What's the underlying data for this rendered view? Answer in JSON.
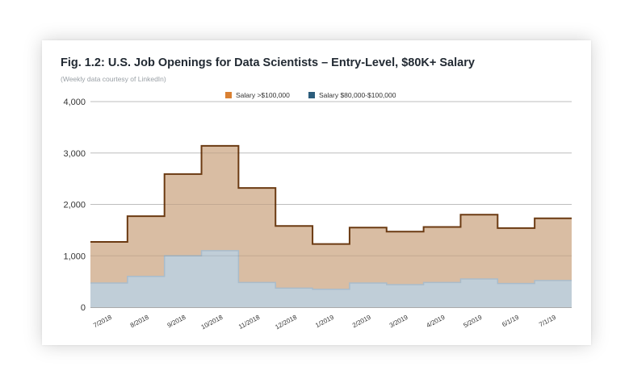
{
  "chart_data": {
    "type": "area",
    "title": "Fig. 1.2: U.S. Job Openings for Data Scientists – Entry-Level, $80K+ Salary",
    "subtitle": "(Weekly data courtesy of LinkedIn)",
    "step": true,
    "stacked": true,
    "categories": [
      "7/2018",
      "8/2018",
      "9/2018",
      "10/2018",
      "11/2018",
      "12/2018",
      "1/2019",
      "2/2019",
      "3/2019",
      "4/2019",
      "5/2019",
      "6/1/19",
      "7/1/19"
    ],
    "ylim": [
      0,
      4000
    ],
    "yticks": [
      "0",
      "1,000",
      "2,000",
      "3,000",
      "4,000"
    ],
    "ytick_values": [
      0,
      1000,
      2000,
      3000,
      4000
    ],
    "grid": true,
    "legend_position": "top-center",
    "series": [
      {
        "name": "Salary >$100,000",
        "color": "#d98032",
        "fill": "#d9bda3",
        "line": "#6b3a12",
        "values": [
          800,
          1170,
          1590,
          2040,
          1840,
          1210,
          880,
          1080,
          1030,
          1080,
          1250,
          1080,
          1210
        ]
      },
      {
        "name": "Salary $80,000-$100,000",
        "color": "#2c5d7c",
        "fill": "#c0ced8",
        "line": "#a9bccb",
        "values": [
          470,
          600,
          1000,
          1100,
          480,
          370,
          350,
          470,
          440,
          480,
          550,
          460,
          520
        ]
      }
    ]
  }
}
